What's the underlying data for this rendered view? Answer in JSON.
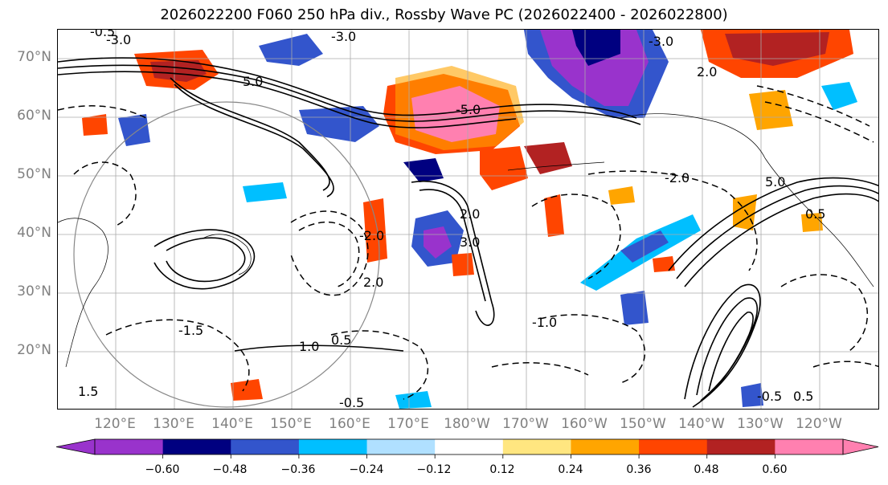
{
  "title": "2026022200 F060 250 hPa div., Rossby Wave PC (2026022400 - 2026022800)",
  "lat_labels": [
    "70°N",
    "60°N",
    "50°N",
    "40°N",
    "30°N",
    "20°N"
  ],
  "lon_labels": [
    "120°E",
    "130°E",
    "140°E",
    "150°E",
    "160°E",
    "170°E",
    "180°W",
    "170°W",
    "160°W",
    "150°W",
    "140°W",
    "130°W",
    "120°W"
  ],
  "contour_labels": [
    "-3.0",
    "-0.5",
    "5.0",
    "2.0",
    "-2.0",
    "1.0",
    "0.5",
    "-1.0",
    "-1.5",
    "-5.0",
    "3.0",
    "1.5"
  ],
  "colorbar": {
    "colors": [
      "#9933cc",
      "#000080",
      "#3355cc",
      "#00bfff",
      "#b0e0ff",
      "#ffffff",
      "#ffe680",
      "#ffa500",
      "#ff4500",
      "#b22222",
      "#ff80b0"
    ],
    "extend_min_color": "#9933cc",
    "extend_max_color": "#ff80b0",
    "tick_labels": [
      "−0.60",
      "−0.48",
      "−0.36",
      "−0.24",
      "−0.12",
      "0.12",
      "0.24",
      "0.36",
      "0.48",
      "0.60"
    ]
  },
  "colors": {
    "contour": "#000000",
    "grid": "#aaaaaa",
    "coast": "#000000",
    "axis_label": "#808080"
  }
}
